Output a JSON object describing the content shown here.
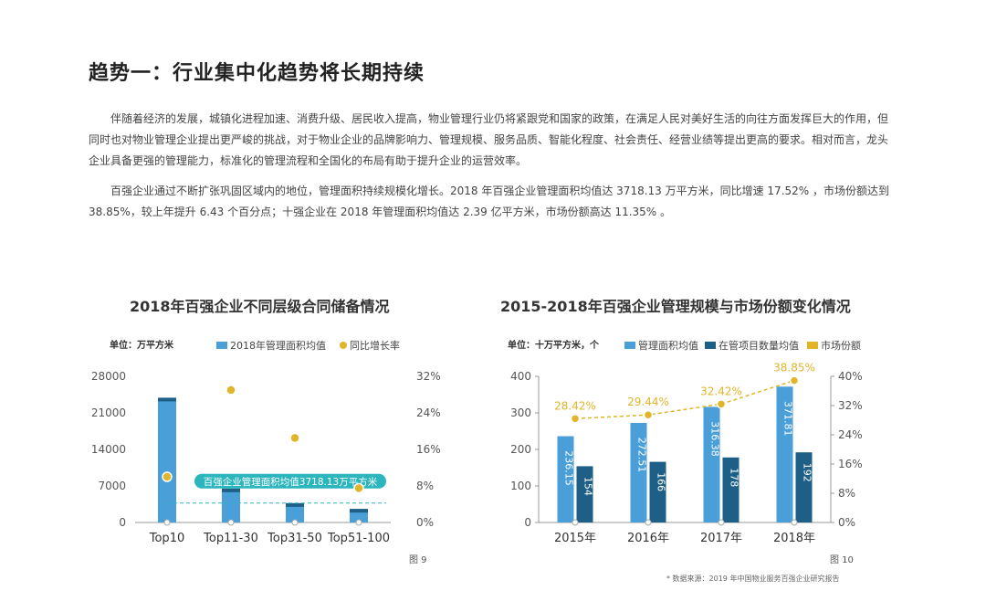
{
  "page": {
    "title": "趋势一：行业集中化趋势将长期持续",
    "paragraph1": "伴随着经济的发展，城镇化进程加速、消费升级、居民收入提高，物业管理行业仍将紧跟党和国家的政策，在满足人民对美好生活的向往方面发挥巨大的作用，但同时也对物业管理企业提出更严峻的挑战，对于物业企业的品牌影响力、管理规模、服务品质、智能化程度、社会责任、经营业绩等提出更高的要求。相对而言，龙头企业具备更强的管理能力，标准化的管理流程和全国化的布局有助于提升企业的运营效率。",
    "paragraph2": "百强企业通过不断扩张巩固区域内的地位，管理面积持续规模化增长。2018 年百强企业管理面积均值达 3718.13 万平方米，同比增速 17.52% ，市场份额达到 38.85%，较上年提升 6.43 个百分点；十强企业在 2018 年管理面积均值达 2.39 亿平方米，市场份额高达 11.35% 。",
    "source": "* 数据来源：2019 年中国物业服务百强企业研究报告"
  },
  "colors": {
    "light_blue": "#4a9fd8",
    "dark_blue": "#1d5f86",
    "gold": "#e1b52a",
    "teal": "#2bb5bd"
  },
  "chart_data": [
    {
      "type": "bar",
      "title": "2018年百强企业不同层级合同储备情况",
      "unit_label": "单位：万平方米",
      "figure_label": "图 9",
      "categories": [
        "Top10",
        "Top11-30",
        "Top31-50",
        "Top51-100"
      ],
      "series": [
        {
          "name": "2018年管理面积均值",
          "type": "bar",
          "axis": "left",
          "values": [
            23900,
            6500,
            3700,
            2600
          ]
        },
        {
          "name": "同比增长率",
          "type": "scatter",
          "axis": "right",
          "values": [
            0.1,
            0.29,
            0.185,
            0.075
          ]
        }
      ],
      "y_left": {
        "min": 0,
        "max": 28000,
        "ticks": [
          "0",
          "7000",
          "14000",
          "21000",
          "28000"
        ]
      },
      "y_right": {
        "min": 0,
        "max": 0.32,
        "ticks": [
          "0%",
          "8%",
          "16%",
          "24%",
          "32%"
        ]
      },
      "reference_line": {
        "value": 3718.13,
        "label": "百强企业管理面积均值3718.13万平方米"
      }
    },
    {
      "type": "bar",
      "title": "2015-2018年百强企业管理规模与市场份额变化情况",
      "unit_label": "单位：十万平方米，个",
      "figure_label": "图 10",
      "categories": [
        "2015年",
        "2016年",
        "2017年",
        "2018年"
      ],
      "series": [
        {
          "name": "管理面积均值",
          "type": "bar",
          "axis": "left",
          "values": [
            236.15,
            272.51,
            316.38,
            371.81
          ],
          "labels": [
            "236.15",
            "272.51",
            "316.38",
            "371.81"
          ]
        },
        {
          "name": "在管项目数量均值",
          "type": "bar",
          "axis": "left",
          "values": [
            154,
            166,
            178,
            192
          ],
          "labels": [
            "154",
            "166",
            "178",
            "192"
          ]
        },
        {
          "name": "市场份额",
          "type": "line",
          "axis": "right",
          "values": [
            0.2842,
            0.2944,
            0.3242,
            0.3885
          ],
          "labels": [
            "28.42%",
            "29.44%",
            "32.42%",
            "38.85%"
          ]
        }
      ],
      "y_left": {
        "min": 0,
        "max": 400,
        "ticks": [
          "0",
          "100",
          "200",
          "300",
          "400"
        ]
      },
      "y_right": {
        "min": 0,
        "max": 0.4,
        "ticks": [
          "0%",
          "8%",
          "16%",
          "24%",
          "32%",
          "40%"
        ]
      }
    }
  ]
}
